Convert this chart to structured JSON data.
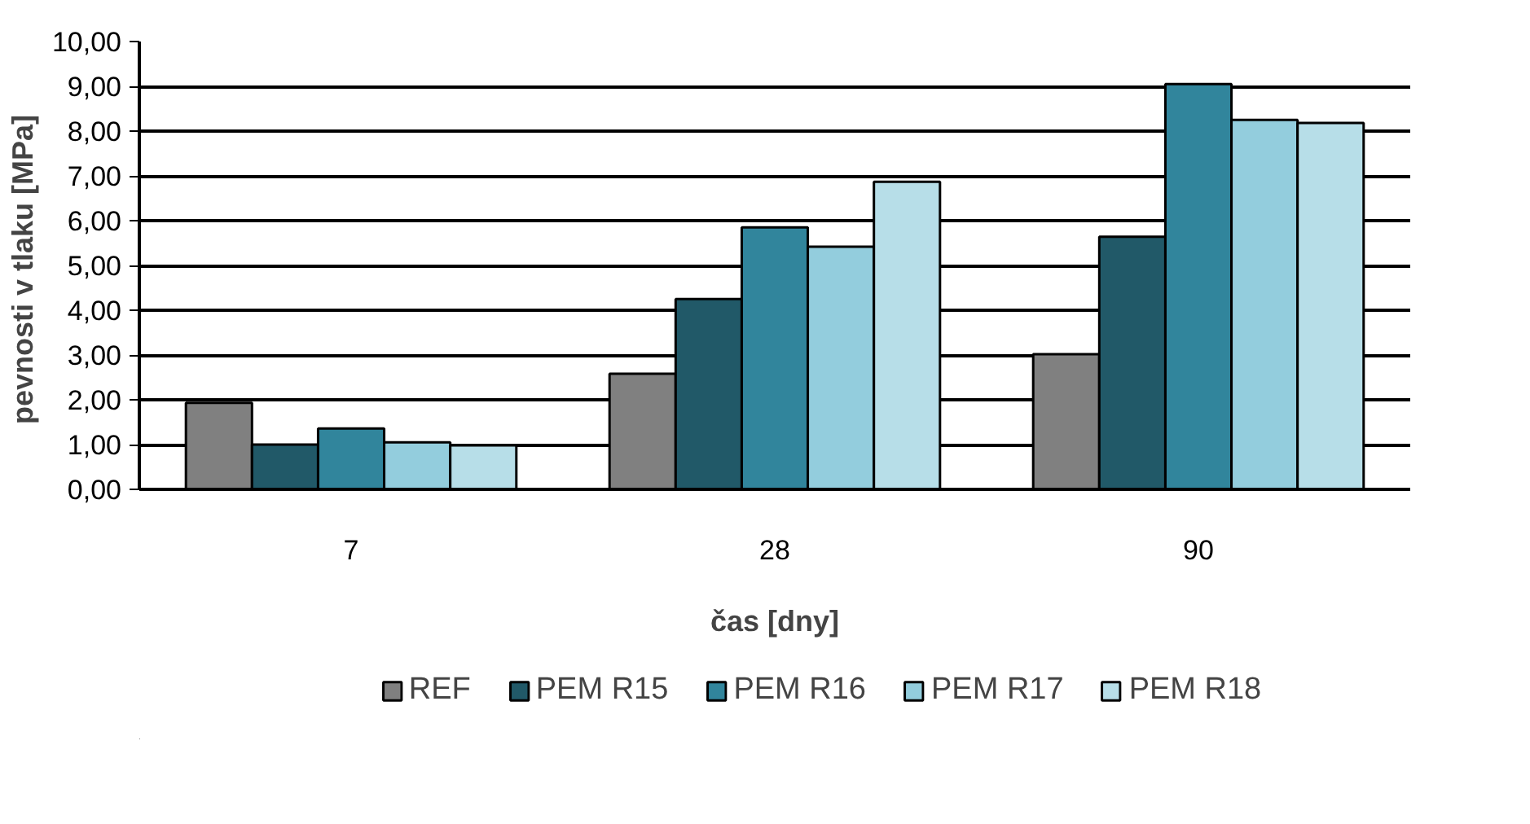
{
  "chart_data": {
    "type": "bar",
    "xlabel": "čas [dny]",
    "ylabel": "pevnosti  v tlaku [MPa]",
    "categories": [
      "7",
      "28",
      "90"
    ],
    "series": [
      {
        "name": "REF",
        "color": "#808080",
        "values": [
          1.93,
          2.58,
          3.02
        ]
      },
      {
        "name": "PEM R15",
        "color": "#215968",
        "values": [
          1.0,
          4.25,
          5.64
        ]
      },
      {
        "name": "PEM R16",
        "color": "#31859c",
        "values": [
          1.36,
          5.85,
          9.05
        ]
      },
      {
        "name": "PEM R17",
        "color": "#93cddd",
        "values": [
          1.05,
          5.42,
          8.25
        ]
      },
      {
        "name": "PEM R18",
        "color": "#b7dee8",
        "values": [
          0.98,
          6.87,
          8.18
        ]
      }
    ],
    "ylim": [
      0,
      10
    ],
    "yticks": [
      {
        "value": 0,
        "label": "0,00"
      },
      {
        "value": 1,
        "label": "1,00"
      },
      {
        "value": 2,
        "label": "2,00"
      },
      {
        "value": 3,
        "label": "3,00"
      },
      {
        "value": 4,
        "label": "4,00"
      },
      {
        "value": 5,
        "label": "5,00"
      },
      {
        "value": 6,
        "label": "6,00"
      },
      {
        "value": 7,
        "label": "7,00"
      },
      {
        "value": 8,
        "label": "8,00"
      },
      {
        "value": 9,
        "label": "9,00"
      },
      {
        "value": 10,
        "label": "10,00"
      }
    ],
    "grid": "y",
    "legend": "bottom"
  }
}
